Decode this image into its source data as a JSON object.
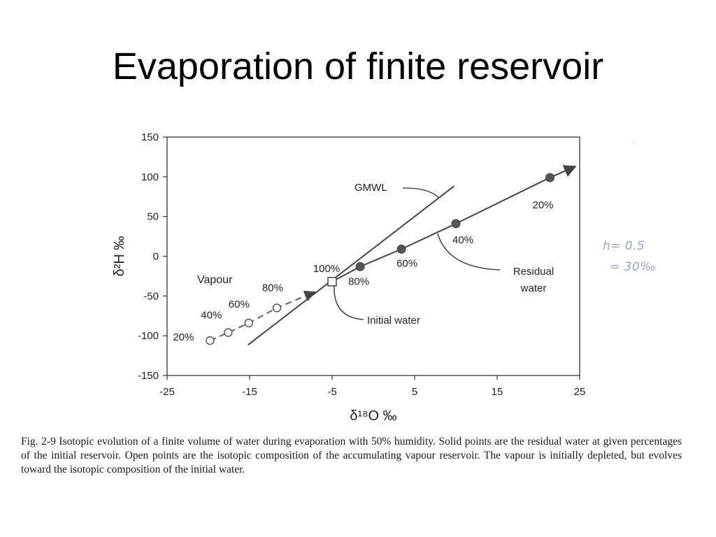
{
  "slide": {
    "title": "Evaporation of finite reservoir"
  },
  "caption": "Fig. 2-9  Isotopic evolution of a finite volume of water during evaporation with 50% humidity. Solid points are the residual water at given percentages of the initial reservoir. Open points are the isotopic composition of the accumulating vapour reservoir. The vapour is initially depleted, but evolves toward the isotopic composition of the initial water.",
  "handwritten_notes": [
    "h= 0.5",
    "= 30‰"
  ],
  "chart_data": {
    "type": "scatter",
    "xlabel": "δ¹⁸O ‰",
    "ylabel": "δ²H ‰",
    "xlim": [
      -25,
      25
    ],
    "ylim": [
      -150,
      150
    ],
    "xticks": [
      -25,
      -15,
      -5,
      5,
      15,
      25
    ],
    "yticks": [
      150,
      100,
      50,
      0,
      -50,
      -100,
      -150
    ],
    "grid": false,
    "lines": [
      {
        "label": "GMWL",
        "style": "solid",
        "points": [
          [
            -15.2,
            -111.6
          ],
          [
            9.8,
            88.4
          ]
        ]
      }
    ],
    "series": [
      {
        "name": "Residual water",
        "marker": "filled-circle",
        "style": "solid",
        "points": [
          [
            -1.6,
            -13
          ],
          [
            3.4,
            9
          ],
          [
            10,
            41
          ],
          [
            21.4,
            99
          ]
        ],
        "labels": [
          "80%",
          "60%",
          "40%",
          "20%"
        ],
        "arrow_to": [
          24.5,
          113
        ]
      },
      {
        "name": "Vapour",
        "marker": "open-circle",
        "style": "dashed",
        "points": [
          [
            -19.8,
            -106
          ],
          [
            -17.6,
            -96
          ],
          [
            -15.1,
            -84
          ],
          [
            -11.7,
            -65
          ]
        ],
        "labels": [
          "20%",
          "40%",
          "60%",
          "80%"
        ],
        "arrow_to": [
          -7.1,
          -45
        ]
      }
    ],
    "initial_point": {
      "marker": "open-square",
      "point": [
        -5,
        -32
      ],
      "label": "100%"
    },
    "annotations": [
      {
        "text": "GMWL"
      },
      {
        "text": "Vapour"
      },
      {
        "text": "Residual"
      },
      {
        "text": "water"
      },
      {
        "text": "Initial water"
      }
    ]
  }
}
